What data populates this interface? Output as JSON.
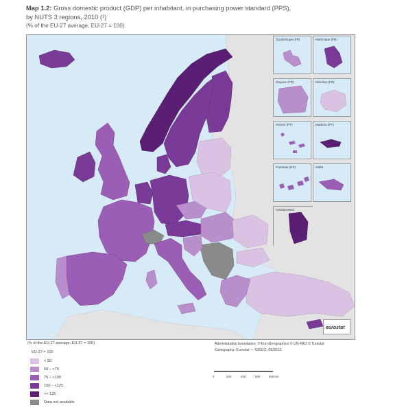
{
  "title": {
    "map_number": "Map 1.2:",
    "text": "Gross domestic product (GDP) per inhabitant, in purchasing power standard (PPS),",
    "line2": "by NUTS 3 regions, 2010 (¹)",
    "line3": "(% of the EU-27 average, EU-27 = 100)"
  },
  "insets": [
    {
      "label": "Guadeloupe (FR)"
    },
    {
      "label": "Martinique (FR)"
    },
    {
      "label": "Guyane (FR)"
    },
    {
      "label": "Réunion (FR)"
    },
    {
      "label": "Acores (PT)"
    },
    {
      "label": "Madeira (PT)"
    },
    {
      "label": "Canarias (ES)"
    },
    {
      "label": "Malta"
    },
    {
      "label": "Liechtenstein"
    }
  ],
  "legend": {
    "title": "(% of the EU-27 average, EU-27 = 100)",
    "sub": "EU-27 = 100",
    "items": [
      {
        "label": "< 50",
        "color": "#d9c2e2"
      },
      {
        "label": "50 – <75",
        "color": "#b98fcb"
      },
      {
        "label": "75 – <100",
        "color": "#9a5fb4"
      },
      {
        "label": "100 – <125",
        "color": "#7a3a98"
      },
      {
        "label": ">= 125",
        "color": "#5a1f74"
      },
      {
        "label": "Data not available",
        "color": "#8a8a8a"
      }
    ]
  },
  "credits": {
    "line1": "Administrative boundaries: © EuroGeographics © UN-FAO © Turkstat",
    "line2": "Cartography: Eurostat — GISCO, 09/2013"
  },
  "scale": {
    "ticks": [
      "0",
      "200",
      "400",
      "600",
      "800 km"
    ]
  },
  "logo": {
    "text": "eurostat"
  },
  "colors": {
    "sea": "#d6eaf8",
    "non_eu": "#e0e0e0"
  }
}
